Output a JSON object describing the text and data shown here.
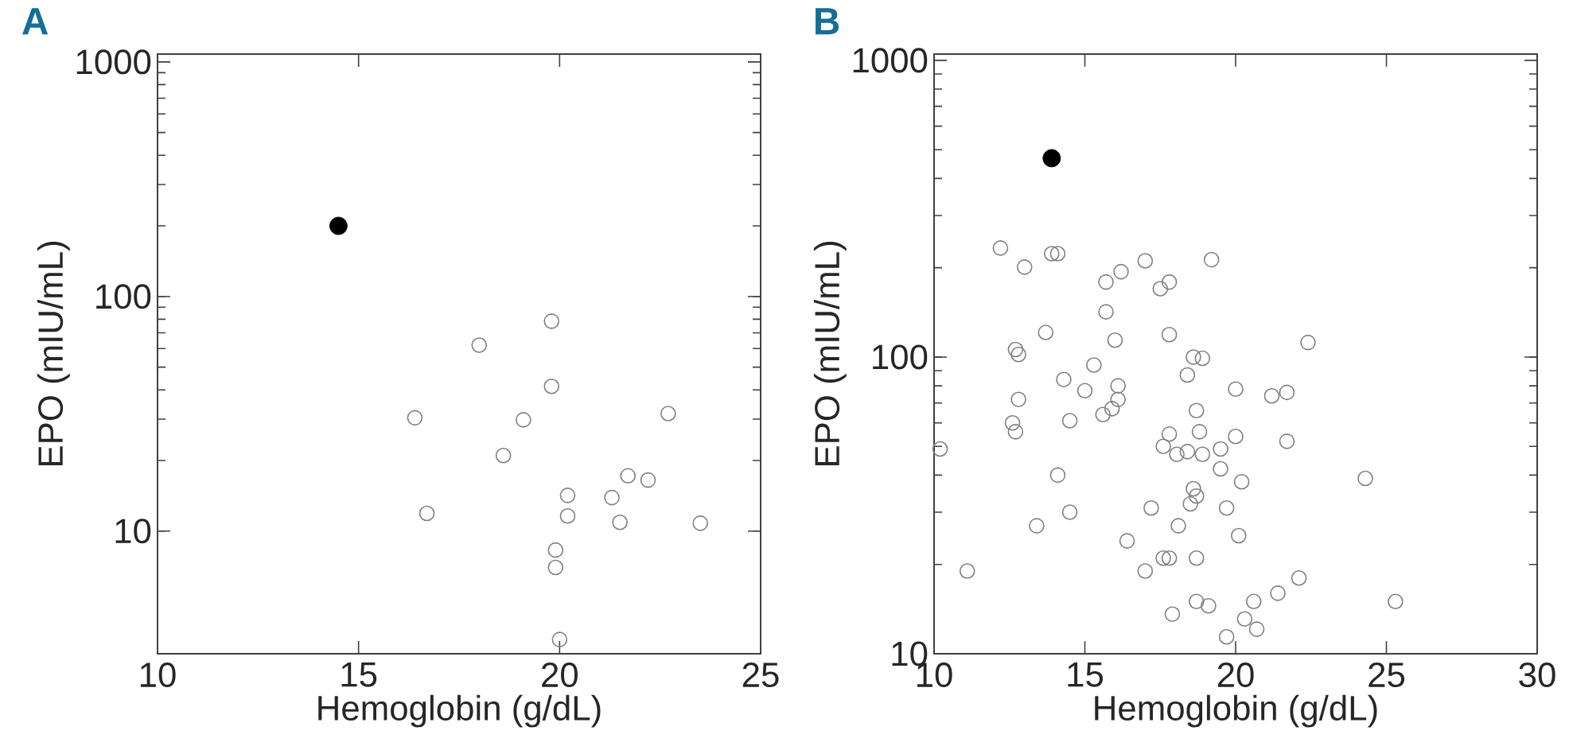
{
  "chart_data": [
    {
      "type": "scatter",
      "title": "A",
      "xlabel": "Hemoglobin (g/dL)",
      "ylabel": "EPO (mIU/mL)",
      "log": "y",
      "marker": "circle",
      "xlim": [
        10,
        25
      ],
      "ylim": [
        3,
        1080
      ],
      "xticks": [
        10,
        15,
        20,
        25
      ],
      "yticks": [
        10,
        100,
        1000
      ],
      "series": [
        {
          "color": "#000000",
          "x": [
            14.5
          ],
          "values": [
            200
          ]
        },
        {
          "color": "#808080",
          "x": [
            19.8,
            18.0,
            19.8,
            16.4,
            19.1,
            22.7,
            18.6,
            21.7,
            22.2,
            20.2,
            21.3,
            16.7,
            20.2,
            21.5,
            23.5,
            19.9,
            19.9,
            20.0
          ],
          "values": [
            78.5,
            62,
            41.4,
            30.4,
            29.8,
            31.7,
            21,
            17.2,
            16.5,
            14.2,
            13.9,
            11.9,
            11.6,
            10.9,
            10.8,
            8.3,
            7.0,
            3.45
          ]
        }
      ]
    },
    {
      "type": "scatter",
      "title": "B",
      "xlabel": "Hemoglobin (g/dL)",
      "ylabel": "EPO (mIU/mL)",
      "log": "y",
      "marker": "circle",
      "xlim": [
        10,
        30
      ],
      "ylim": [
        10,
        1050
      ],
      "xticks": [
        10,
        15,
        20,
        25,
        30
      ],
      "yticks": [
        10,
        100,
        1000
      ],
      "series": [
        {
          "color": "#000000",
          "x": [
            13.9
          ],
          "values": [
            468
          ]
        },
        {
          "color": "#808080",
          "x": [
            12.2,
            13.0,
            13.9,
            14.1,
            15.7,
            16.2,
            17.0,
            17.5,
            17.8,
            15.7,
            13.7,
            17.8,
            16.0,
            12.7,
            12.8,
            15.3,
            14.3,
            16.1,
            15.0,
            12.8,
            16.1,
            15.9,
            15.6,
            14.5,
            12.6,
            12.7,
            10.2,
            14.1,
            14.5,
            13.4,
            16.4,
            17.2,
            17.8,
            17.6,
            17.0,
            11.1,
            17.9,
            17.8,
            17.6,
            18.05,
            19.2,
            22.4,
            18.6,
            18.9,
            18.4,
            20.0,
            21.2,
            21.7,
            18.7,
            18.8,
            20.0,
            21.7,
            19.5,
            18.4,
            18.9,
            19.5,
            24.3,
            20.2,
            18.6,
            18.7,
            18.5,
            19.7,
            18.1,
            20.1,
            18.7,
            22.1,
            21.4,
            18.7,
            19.1,
            20.6,
            25.3,
            20.3,
            20.7,
            19.7
          ],
          "values": [
            233,
            201,
            223,
            223,
            179,
            194,
            211,
            170,
            179,
            142,
            121,
            119,
            114,
            106,
            102,
            94,
            84,
            80,
            77,
            72,
            72,
            67,
            64,
            61,
            60,
            56,
            49,
            40,
            30,
            27,
            24,
            31,
            21,
            21,
            19,
            19,
            13.6,
            55,
            50,
            47,
            213,
            112,
            100,
            99,
            87,
            78,
            74,
            76,
            66,
            56,
            54,
            52,
            49,
            48,
            47,
            42,
            39,
            38,
            36,
            34,
            32,
            31,
            27,
            25,
            21,
            18,
            16,
            15,
            14.5,
            15,
            15,
            13.1,
            12.1,
            11.4
          ]
        }
      ]
    }
  ]
}
